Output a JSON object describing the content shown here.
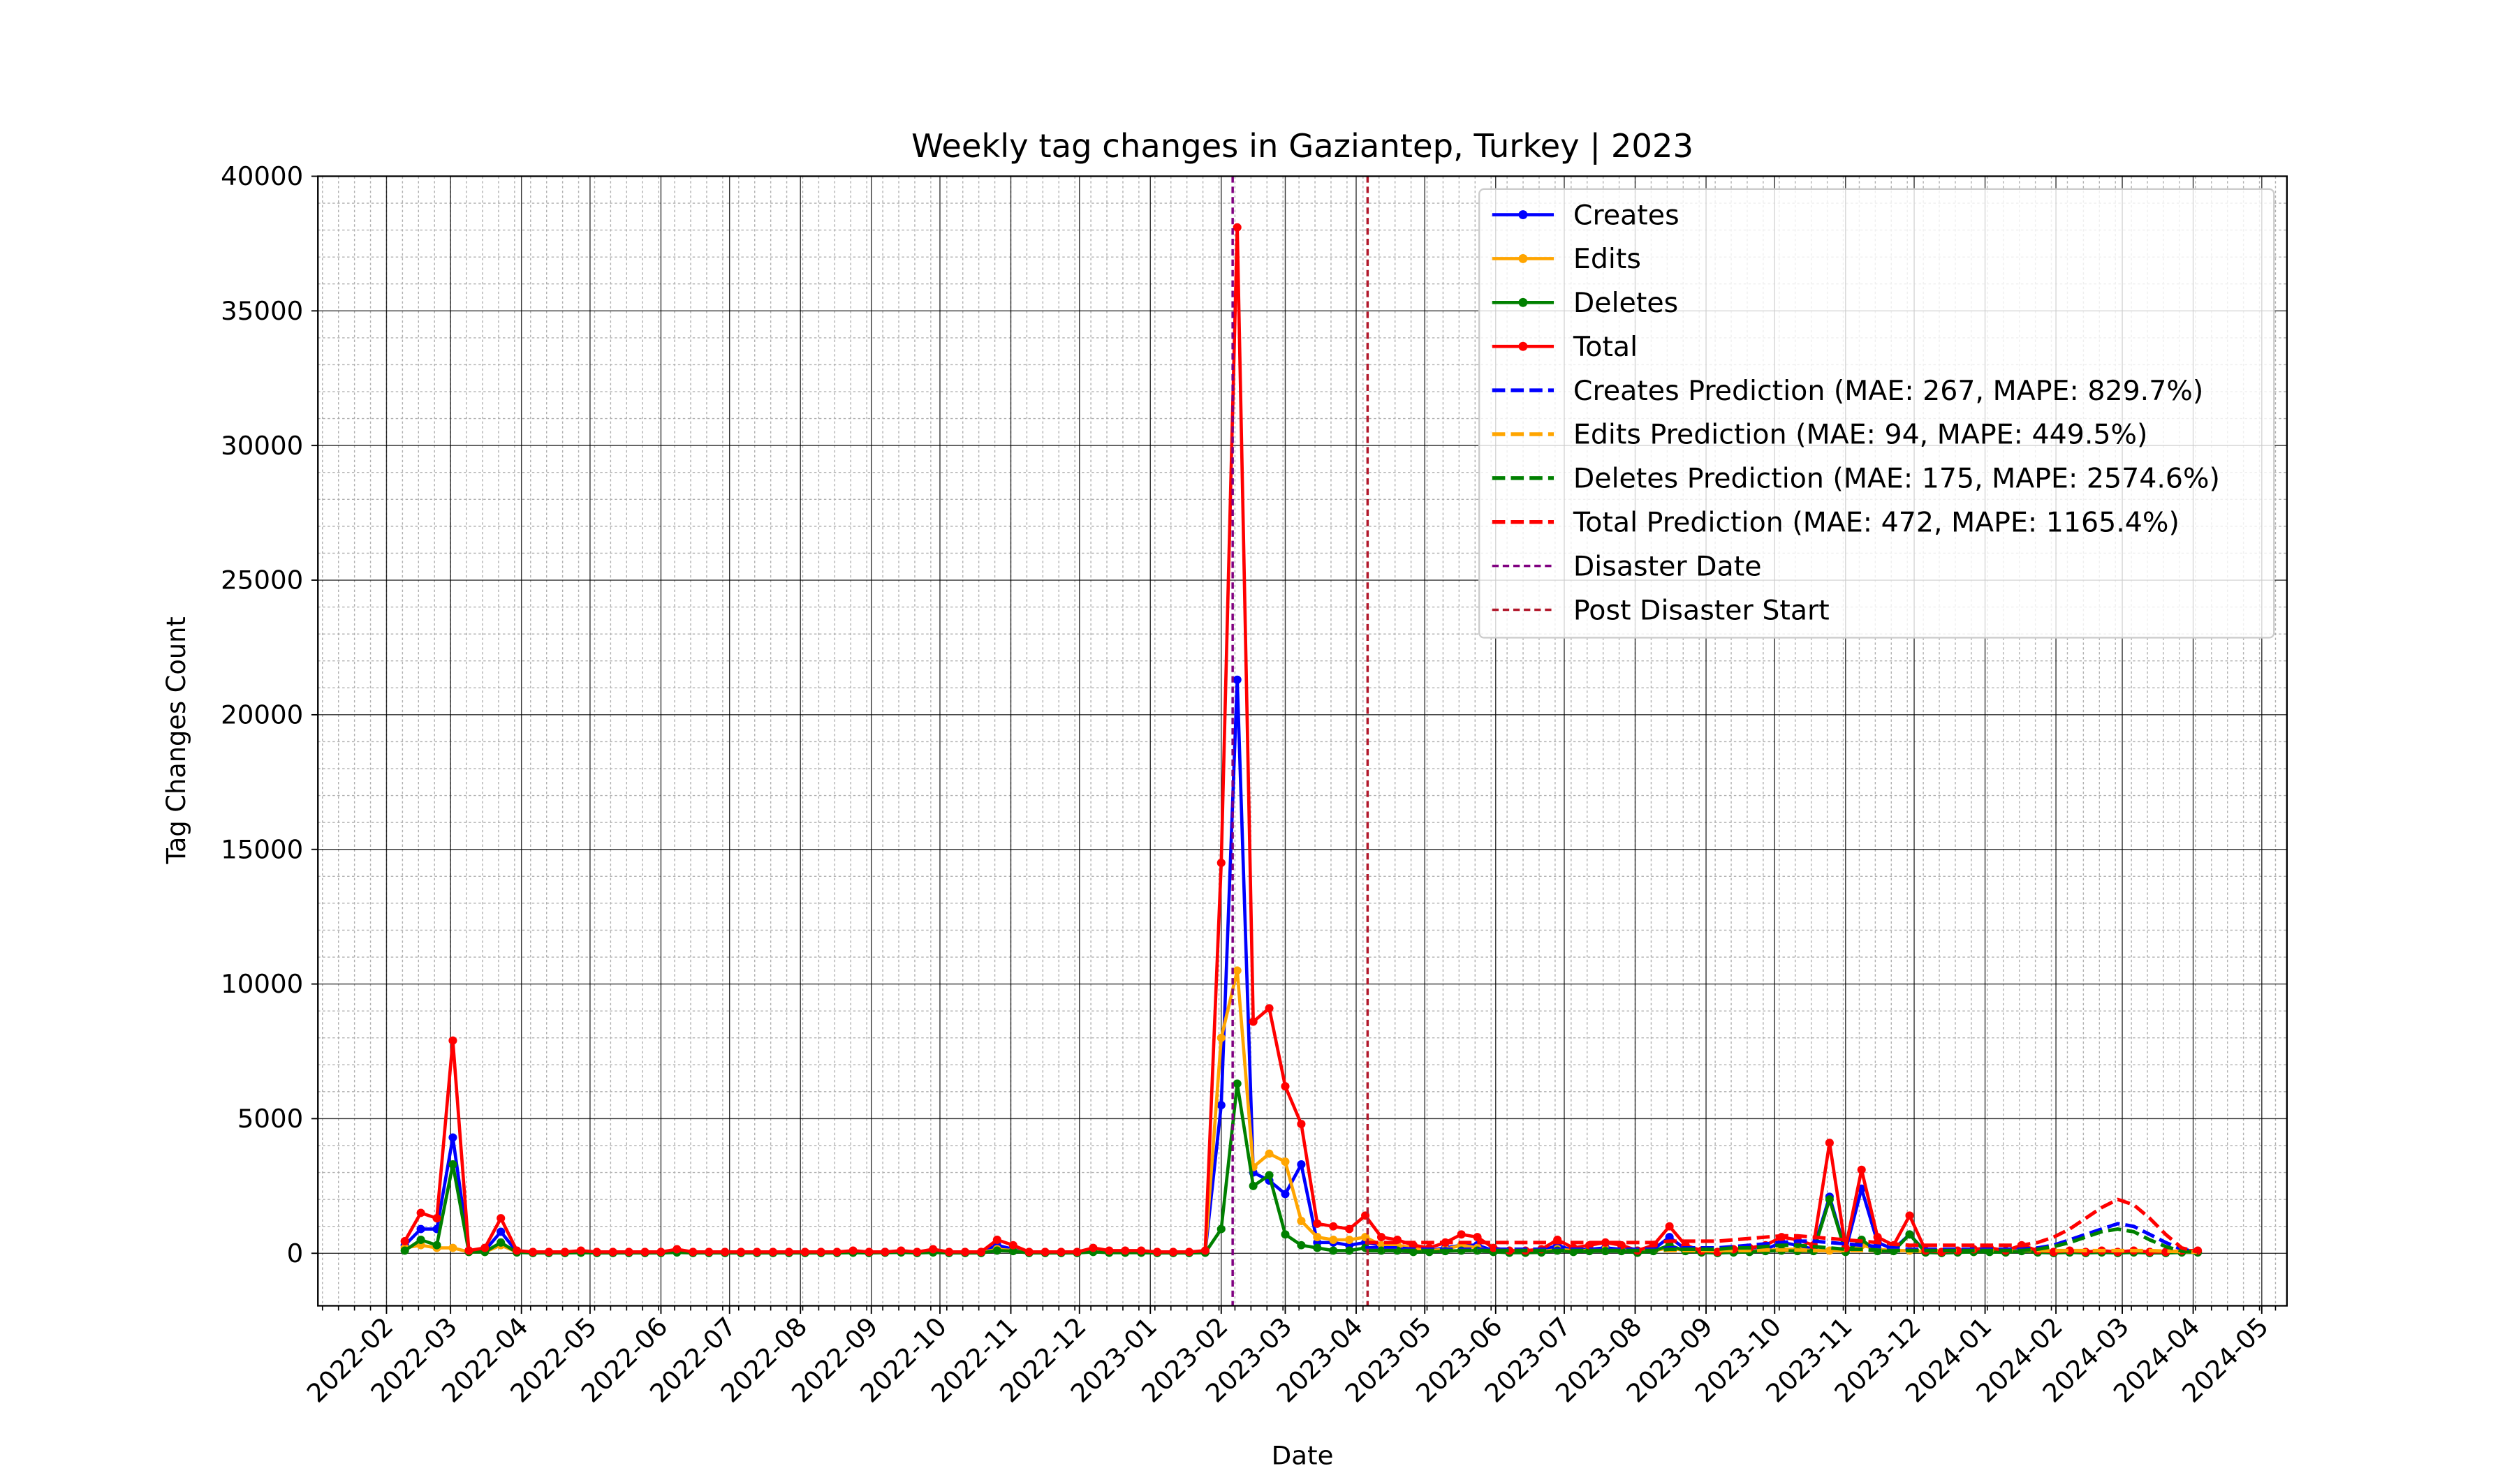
{
  "chart_data": {
    "type": "line",
    "title": "Weekly tag changes in Gaziantep, Turkey | 2023",
    "xlabel": "Date",
    "ylabel": "Tag Changes Count",
    "grid": true,
    "minor_grid": true,
    "legend": "upper right",
    "xlim": [
      18994,
      19855
    ],
    "ylim": [
      -1950,
      40000
    ],
    "yticks": [
      0,
      5000,
      10000,
      15000,
      20000,
      25000,
      30000,
      35000,
      40000
    ],
    "xticks": [
      {
        "value": 19024,
        "label": "2022-02"
      },
      {
        "value": 19052,
        "label": "2022-03"
      },
      {
        "value": 19083,
        "label": "2022-04"
      },
      {
        "value": 19113,
        "label": "2022-05"
      },
      {
        "value": 19144,
        "label": "2022-06"
      },
      {
        "value": 19174,
        "label": "2022-07"
      },
      {
        "value": 19205,
        "label": "2022-08"
      },
      {
        "value": 19236,
        "label": "2022-09"
      },
      {
        "value": 19266,
        "label": "2022-10"
      },
      {
        "value": 19297,
        "label": "2022-11"
      },
      {
        "value": 19327,
        "label": "2022-12"
      },
      {
        "value": 19358,
        "label": "2023-01"
      },
      {
        "value": 19389,
        "label": "2023-02"
      },
      {
        "value": 19417,
        "label": "2023-03"
      },
      {
        "value": 19448,
        "label": "2023-04"
      },
      {
        "value": 19478,
        "label": "2023-05"
      },
      {
        "value": 19509,
        "label": "2023-06"
      },
      {
        "value": 19539,
        "label": "2023-07"
      },
      {
        "value": 19570,
        "label": "2023-08"
      },
      {
        "value": 19601,
        "label": "2023-09"
      },
      {
        "value": 19631,
        "label": "2023-10"
      },
      {
        "value": 19662,
        "label": "2023-11"
      },
      {
        "value": 19692,
        "label": "2023-12"
      },
      {
        "value": 19723,
        "label": "2024-01"
      },
      {
        "value": 19754,
        "label": "2024-02"
      },
      {
        "value": 19783,
        "label": "2024-03"
      },
      {
        "value": 19814,
        "label": "2024-04"
      },
      {
        "value": 19844,
        "label": "2024-05"
      }
    ],
    "x": [
      19032,
      19039,
      19046,
      19053,
      19060,
      19067,
      19074,
      19081,
      19088,
      19095,
      19102,
      19109,
      19116,
      19123,
      19130,
      19137,
      19144,
      19151,
      19158,
      19165,
      19172,
      19179,
      19186,
      19193,
      19200,
      19207,
      19214,
      19221,
      19228,
      19235,
      19242,
      19249,
      19256,
      19263,
      19270,
      19277,
      19284,
      19291,
      19298,
      19305,
      19312,
      19319,
      19326,
      19333,
      19340,
      19347,
      19354,
      19361,
      19368,
      19375,
      19382,
      19389,
      19396,
      19403,
      19410,
      19417,
      19424,
      19431,
      19438,
      19445,
      19452,
      19459,
      19466,
      19473,
      19480,
      19487,
      19494,
      19501,
      19508,
      19515,
      19522,
      19529,
      19536,
      19543,
      19550,
      19557,
      19564,
      19571,
      19578,
      19585,
      19592,
      19599,
      19606,
      19613,
      19620,
      19627,
      19634,
      19641,
      19648,
      19655,
      19662,
      19669,
      19676,
      19683,
      19690,
      19697,
      19704,
      19711,
      19718,
      19725,
      19732,
      19739,
      19746,
      19753,
      19760,
      19767,
      19774,
      19781,
      19788,
      19795,
      19802,
      19809,
      19816
    ],
    "series": [
      {
        "name": "Creates",
        "color": "#0000ff",
        "style": "solid",
        "marker": true,
        "values": [
          300,
          900,
          900,
          4300,
          100,
          100,
          800,
          50,
          30,
          30,
          30,
          50,
          30,
          30,
          30,
          30,
          30,
          80,
          30,
          30,
          30,
          30,
          30,
          30,
          30,
          30,
          30,
          30,
          50,
          30,
          50,
          80,
          30,
          80,
          30,
          30,
          30,
          300,
          150,
          30,
          30,
          30,
          30,
          100,
          50,
          50,
          50,
          30,
          30,
          30,
          50,
          5500,
          21300,
          3000,
          2700,
          2200,
          3300,
          400,
          400,
          300,
          400,
          300,
          200,
          150,
          100,
          200,
          300,
          300,
          100,
          50,
          50,
          80,
          300,
          100,
          150,
          200,
          150,
          50,
          150,
          600,
          150,
          50,
          30,
          80,
          100,
          150,
          400,
          300,
          150,
          2100,
          100,
          2400,
          400,
          150,
          700,
          50,
          30,
          50,
          80,
          100,
          50,
          150,
          50,
          30,
          50,
          30,
          50,
          30,
          50,
          30,
          30,
          50,
          50
        ]
      },
      {
        "name": "Edits",
        "color": "#ffa500",
        "style": "solid",
        "marker": true,
        "values": [
          200,
          300,
          200,
          200,
          50,
          50,
          300,
          50,
          20,
          20,
          20,
          30,
          20,
          20,
          20,
          20,
          20,
          50,
          20,
          20,
          20,
          20,
          20,
          20,
          20,
          20,
          20,
          20,
          30,
          20,
          30,
          50,
          20,
          50,
          20,
          20,
          20,
          150,
          100,
          20,
          20,
          20,
          20,
          80,
          40,
          40,
          40,
          20,
          20,
          20,
          30,
          8000,
          10500,
          3200,
          3700,
          3400,
          1200,
          600,
          500,
          500,
          600,
          300,
          300,
          200,
          100,
          150,
          300,
          200,
          100,
          50,
          50,
          50,
          150,
          100,
          100,
          150,
          100,
          50,
          100,
          200,
          100,
          50,
          20,
          50,
          80,
          100,
          150,
          150,
          100,
          100,
          80,
          300,
          150,
          100,
          100,
          50,
          20,
          50,
          50,
          80,
          50,
          100,
          50,
          20,
          50,
          20,
          50,
          20,
          50,
          20,
          20,
          50,
          50
        ]
      },
      {
        "name": "Deletes",
        "color": "#008000",
        "style": "solid",
        "marker": true,
        "values": [
          100,
          500,
          300,
          3300,
          50,
          50,
          400,
          30,
          10,
          10,
          10,
          20,
          10,
          10,
          10,
          10,
          10,
          30,
          10,
          10,
          10,
          10,
          10,
          10,
          10,
          10,
          10,
          10,
          20,
          10,
          20,
          30,
          10,
          30,
          10,
          10,
          10,
          100,
          80,
          10,
          10,
          10,
          10,
          50,
          20,
          20,
          20,
          10,
          10,
          10,
          20,
          900,
          6300,
          2500,
          2900,
          700,
          300,
          200,
          100,
          100,
          200,
          100,
          100,
          50,
          50,
          80,
          100,
          100,
          50,
          20,
          20,
          30,
          100,
          50,
          80,
          80,
          80,
          20,
          80,
          300,
          80,
          30,
          10,
          30,
          50,
          80,
          100,
          80,
          80,
          2000,
          50,
          500,
          80,
          80,
          700,
          30,
          10,
          30,
          50,
          50,
          30,
          80,
          30,
          10,
          30,
          10,
          30,
          10,
          30,
          10,
          10,
          30,
          30
        ]
      },
      {
        "name": "Total",
        "color": "#ff0000",
        "style": "solid",
        "marker": true,
        "values": [
          450,
          1500,
          1300,
          7900,
          100,
          200,
          1300,
          100,
          50,
          50,
          50,
          100,
          50,
          50,
          50,
          50,
          50,
          150,
          50,
          50,
          50,
          50,
          50,
          50,
          50,
          50,
          50,
          50,
          100,
          50,
          50,
          100,
          50,
          150,
          50,
          50,
          50,
          500,
          300,
          50,
          50,
          50,
          50,
          200,
          100,
          100,
          100,
          50,
          50,
          50,
          100,
          14500,
          38100,
          8600,
          9100,
          6200,
          4800,
          1100,
          1000,
          900,
          1400,
          600,
          500,
          300,
          200,
          400,
          700,
          600,
          200,
          100,
          100,
          150,
          500,
          200,
          300,
          400,
          300,
          100,
          300,
          1000,
          300,
          100,
          50,
          150,
          200,
          300,
          600,
          500,
          300,
          4100,
          200,
          3100,
          600,
          300,
          1400,
          100,
          50,
          100,
          150,
          200,
          100,
          300,
          100,
          50,
          100,
          50,
          100,
          50,
          100,
          50,
          50,
          100,
          100
        ]
      },
      {
        "name": "Creates Prediction (MAE: 267, MAPE: 829.7%)",
        "color": "#0000ff",
        "style": "dashed",
        "marker": false,
        "values": [
          null,
          null,
          null,
          null,
          null,
          null,
          null,
          null,
          null,
          null,
          null,
          null,
          null,
          null,
          null,
          null,
          null,
          null,
          null,
          null,
          null,
          null,
          null,
          null,
          null,
          null,
          null,
          null,
          null,
          null,
          null,
          null,
          null,
          null,
          null,
          null,
          null,
          null,
          null,
          null,
          null,
          null,
          null,
          null,
          null,
          null,
          null,
          null,
          null,
          null,
          null,
          null,
          null,
          null,
          null,
          null,
          null,
          null,
          null,
          null,
          200,
          200,
          200,
          150,
          150,
          150,
          150,
          150,
          150,
          150,
          150,
          150,
          150,
          150,
          150,
          150,
          150,
          150,
          150,
          200,
          200,
          200,
          200,
          250,
          300,
          350,
          400,
          450,
          450,
          400,
          350,
          300,
          250,
          200,
          150,
          150,
          150,
          150,
          150,
          150,
          150,
          150,
          200,
          300,
          500,
          700,
          900,
          1100,
          1000,
          700,
          400,
          150,
          50
        ]
      },
      {
        "name": "Edits Prediction (MAE: 94, MAPE: 449.5%)",
        "color": "#ffa500",
        "style": "dashed",
        "marker": false,
        "values": [
          null,
          null,
          null,
          null,
          null,
          null,
          null,
          null,
          null,
          null,
          null,
          null,
          null,
          null,
          null,
          null,
          null,
          null,
          null,
          null,
          null,
          null,
          null,
          null,
          null,
          null,
          null,
          null,
          null,
          null,
          null,
          null,
          null,
          null,
          null,
          null,
          null,
          null,
          null,
          null,
          null,
          null,
          null,
          null,
          null,
          null,
          null,
          null,
          null,
          null,
          null,
          null,
          null,
          null,
          null,
          null,
          null,
          null,
          null,
          null,
          100,
          100,
          100,
          100,
          100,
          100,
          100,
          100,
          100,
          100,
          100,
          100,
          100,
          100,
          100,
          100,
          100,
          100,
          100,
          100,
          100,
          100,
          100,
          100,
          100,
          120,
          120,
          120,
          100,
          100,
          100,
          100,
          100,
          100,
          100,
          100,
          100,
          100,
          100,
          100,
          100,
          100,
          100,
          100,
          100,
          100,
          100,
          100,
          100,
          100,
          80,
          60,
          40
        ]
      },
      {
        "name": "Deletes Prediction (MAE: 175, MAPE: 2574.6%)",
        "color": "#008000",
        "style": "dashed",
        "marker": false,
        "values": [
          null,
          null,
          null,
          null,
          null,
          null,
          null,
          null,
          null,
          null,
          null,
          null,
          null,
          null,
          null,
          null,
          null,
          null,
          null,
          null,
          null,
          null,
          null,
          null,
          null,
          null,
          null,
          null,
          null,
          null,
          null,
          null,
          null,
          null,
          null,
          null,
          null,
          null,
          null,
          null,
          null,
          null,
          null,
          null,
          null,
          null,
          null,
          null,
          null,
          null,
          null,
          null,
          null,
          null,
          null,
          null,
          null,
          null,
          null,
          null,
          100,
          100,
          100,
          100,
          100,
          100,
          100,
          100,
          100,
          100,
          100,
          100,
          100,
          100,
          100,
          100,
          100,
          100,
          100,
          150,
          150,
          150,
          150,
          200,
          200,
          250,
          300,
          300,
          250,
          200,
          150,
          150,
          100,
          100,
          100,
          100,
          100,
          100,
          100,
          100,
          100,
          100,
          150,
          250,
          400,
          600,
          800,
          900,
          800,
          500,
          250,
          80,
          30
        ]
      },
      {
        "name": "Total Prediction (MAE: 472, MAPE: 1165.4%)",
        "color": "#ff0000",
        "style": "dashed",
        "marker": false,
        "values": [
          null,
          null,
          null,
          null,
          null,
          null,
          null,
          null,
          null,
          null,
          null,
          null,
          null,
          null,
          null,
          null,
          null,
          null,
          null,
          null,
          null,
          null,
          null,
          null,
          null,
          null,
          null,
          null,
          null,
          null,
          null,
          null,
          null,
          null,
          null,
          null,
          null,
          null,
          null,
          null,
          null,
          null,
          null,
          null,
          null,
          null,
          null,
          null,
          null,
          null,
          null,
          null,
          null,
          null,
          null,
          null,
          null,
          null,
          null,
          null,
          400,
          400,
          400,
          400,
          400,
          400,
          400,
          400,
          400,
          400,
          400,
          400,
          400,
          400,
          400,
          400,
          400,
          400,
          400,
          450,
          450,
          450,
          450,
          500,
          550,
          600,
          650,
          650,
          600,
          550,
          500,
          450,
          400,
          350,
          300,
          300,
          300,
          300,
          300,
          300,
          300,
          300,
          400,
          600,
          900,
          1300,
          1700,
          2000,
          1800,
          1300,
          700,
          200,
          50
        ]
      }
    ],
    "vlines": [
      {
        "name": "Disaster Date",
        "x": 19394,
        "color": "#800080"
      },
      {
        "name": "Post Disaster Start",
        "x": 19453,
        "color": "#b2182b"
      }
    ]
  }
}
